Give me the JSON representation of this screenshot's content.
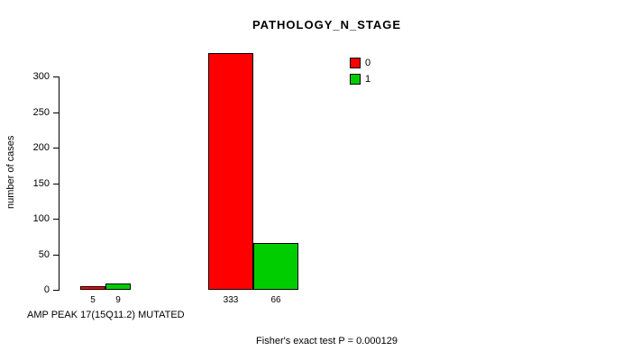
{
  "chart_data": {
    "type": "bar",
    "title": "PATHOLOGY_N_STAGE",
    "ylabel": "number of cases",
    "xlabel": "AMP PEAK 17(15Q11.2) MUTATED",
    "annotation": "Fisher's exact test P = 0.000129",
    "yticks": [
      0,
      50,
      100,
      150,
      200,
      250,
      300
    ],
    "ylim": [
      0,
      333
    ],
    "grid": false,
    "legend": {
      "position": "top-right",
      "entries": [
        {
          "label": "0",
          "color": "#FF0000"
        },
        {
          "label": "1",
          "color": "#00CD00"
        }
      ]
    },
    "groups": [
      {
        "bars": [
          {
            "series": "0",
            "value": 5,
            "label": "5",
            "color": "#FF0000"
          },
          {
            "series": "1",
            "value": 9,
            "label": "9",
            "color": "#00CD00"
          }
        ]
      },
      {
        "bars": [
          {
            "series": "0",
            "value": 333,
            "label": "333",
            "color": "#FF0000"
          },
          {
            "series": "1",
            "value": 66,
            "label": "66",
            "color": "#00CD00"
          }
        ]
      }
    ]
  }
}
